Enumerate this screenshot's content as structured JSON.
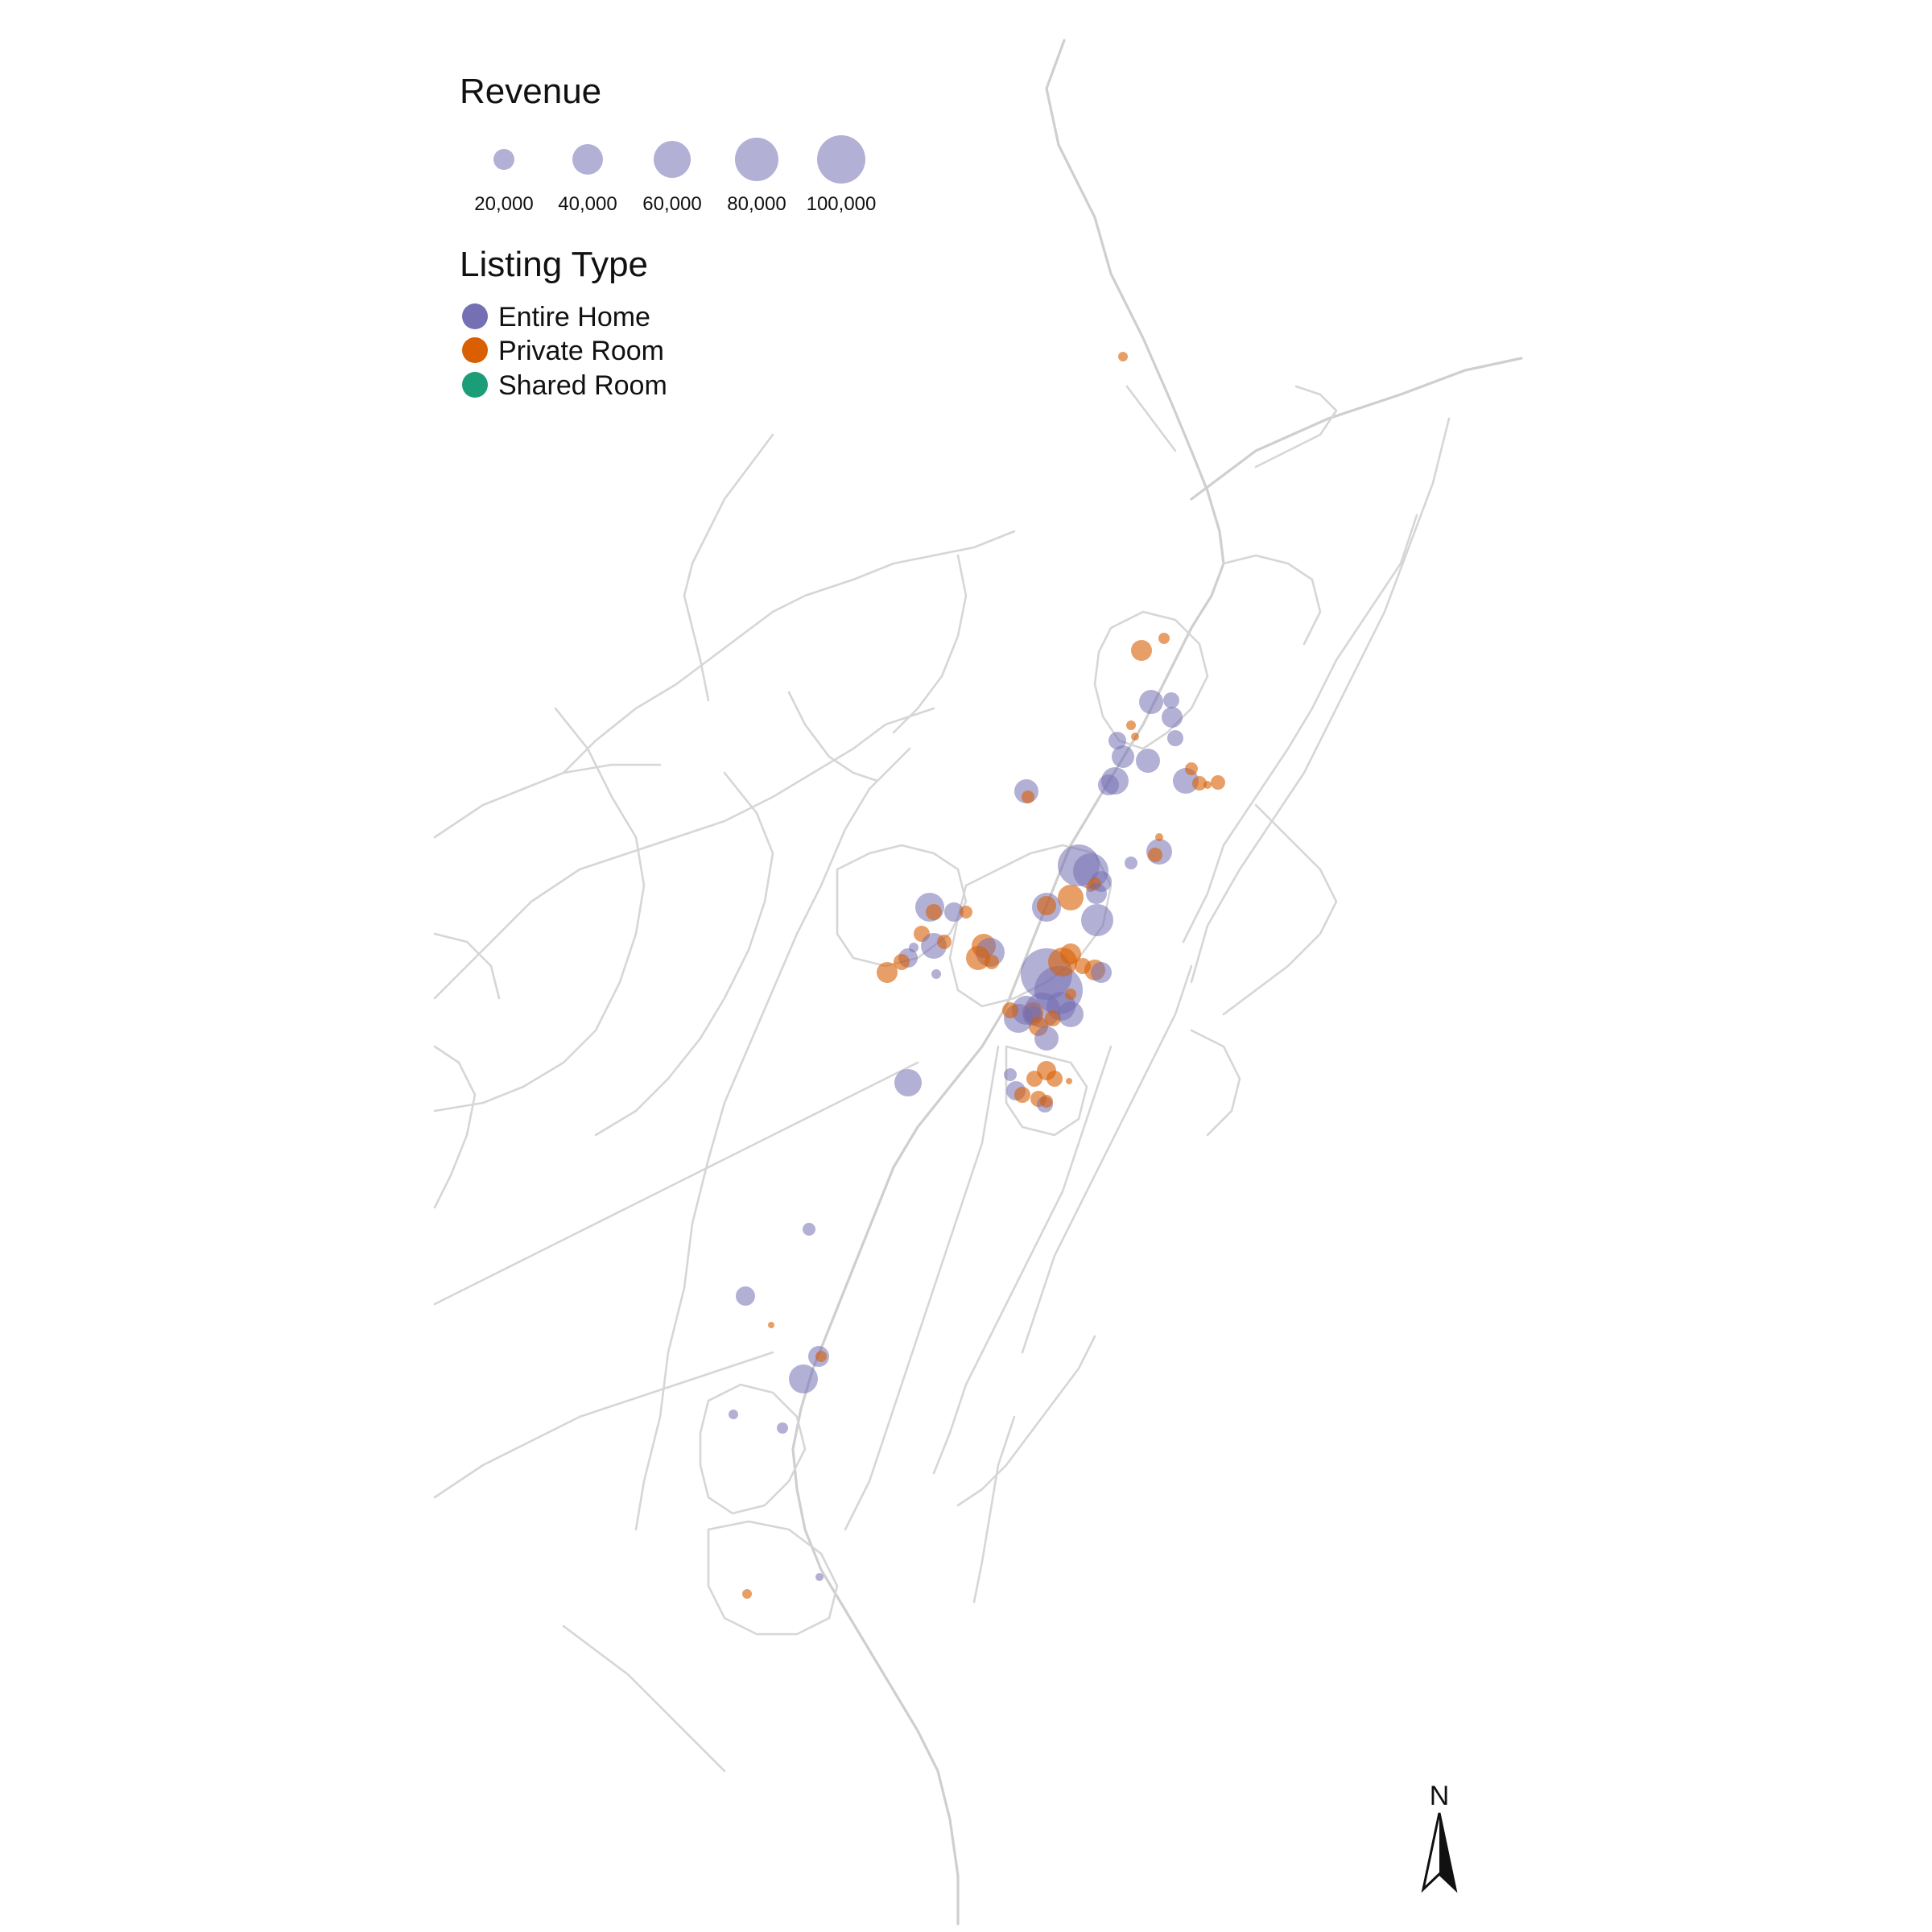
{
  "colors": {
    "entire_home": "#7570b3",
    "private_room": "#d95f02",
    "shared_room": "#1b9e77",
    "road": "#d6d6d6",
    "background": "#ffffff"
  },
  "legend": {
    "revenue": {
      "title": "Revenue",
      "items": [
        {
          "label": "20,000",
          "value": 20000
        },
        {
          "label": "40,000",
          "value": 40000
        },
        {
          "label": "60,000",
          "value": 60000
        },
        {
          "label": "80,000",
          "value": 80000
        },
        {
          "label": "100,000",
          "value": 100000
        }
      ]
    },
    "listing_type": {
      "title": "Listing Type",
      "items": [
        {
          "label": "Entire Home",
          "key": "entire_home"
        },
        {
          "label": "Private Room",
          "key": "private_room"
        },
        {
          "label": "Shared Room",
          "key": "shared_room"
        }
      ]
    }
  },
  "north_arrow": {
    "label": "N"
  }
}
